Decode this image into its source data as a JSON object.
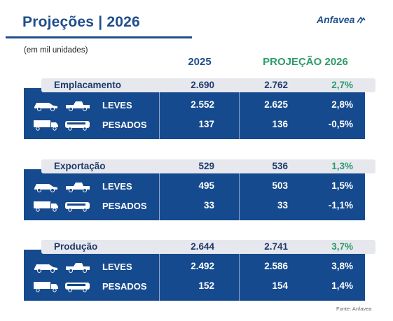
{
  "header": {
    "title": "Projeções | 2026",
    "logo_text": "Anfavea",
    "unit_note": "(em mil unidades)"
  },
  "columns": {
    "year_current": "2025",
    "year_projection": "PROJEÇÃO 2026"
  },
  "colors": {
    "brand_blue": "#164a8e",
    "title_blue": "#1f4e8c",
    "accent_green": "#2e9a6d",
    "summary_bar": "#e6e8ee"
  },
  "sections": [
    {
      "label": "Emplacamento",
      "v2025": "2.690",
      "v2026": "2.762",
      "pct": "2,7%",
      "rows": [
        {
          "label": "LEVES",
          "icon": "car-and-pickup-icon",
          "v2025": "2.552",
          "v2026": "2.625",
          "pct": "2,8%"
        },
        {
          "label": "PESADOS",
          "icon": "truck-and-bus-icon",
          "v2025": "137",
          "v2026": "136",
          "pct": "-0,5%"
        }
      ]
    },
    {
      "label": "Exportação",
      "v2025": "529",
      "v2026": "536",
      "pct": "1,3%",
      "rows": [
        {
          "label": "LEVES",
          "icon": "car-and-pickup-icon",
          "v2025": "495",
          "v2026": "503",
          "pct": "1,5%"
        },
        {
          "label": "PESADOS",
          "icon": "truck-and-bus-icon",
          "v2025": "33",
          "v2026": "33",
          "pct": "-1,1%"
        }
      ]
    },
    {
      "label": "Produção",
      "v2025": "2.644",
      "v2026": "2.741",
      "pct": "3,7%",
      "rows": [
        {
          "label": "LEVES",
          "icon": "car-and-pickup-icon",
          "v2025": "2.492",
          "v2026": "2.586",
          "pct": "3,8%"
        },
        {
          "label": "PESADOS",
          "icon": "truck-and-bus-icon",
          "v2025": "152",
          "v2026": "154",
          "pct": "1,4%"
        }
      ]
    }
  ],
  "footer": {
    "source": "Fonte: Anfavea"
  }
}
